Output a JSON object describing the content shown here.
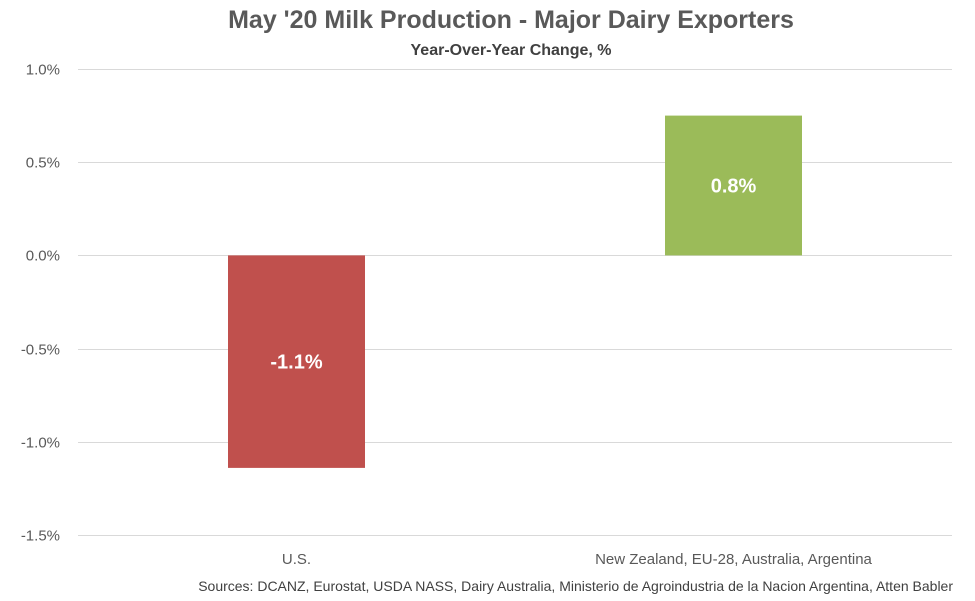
{
  "chart_data": {
    "type": "bar",
    "title": "May '20 Milk Production - Major Dairy Exporters",
    "subtitle": "Year-Over-Year Change, %",
    "categories": [
      "U.S.",
      "New Zealand, EU-28, Australia, Argentina"
    ],
    "values": [
      -1.14,
      0.75
    ],
    "data_labels": [
      "-1.1%",
      "0.8%"
    ],
    "bar_colors": [
      "#c0504d",
      "#9bbb59"
    ],
    "ylim": [
      -1.5,
      1.0
    ],
    "yticks": [
      1.0,
      0.5,
      0.0,
      -0.5,
      -1.0,
      -1.5
    ],
    "ytick_labels": [
      "1.0%",
      "0.5%",
      "0.0%",
      "-0.5%",
      "-1.0%",
      "-1.5%"
    ],
    "grid": true,
    "legend": "none",
    "xlabel": "",
    "ylabel": "",
    "source": "Sources: DCANZ, Eurostat, USDA NASS, Dairy Australia, Ministerio de Agroindustria de la Nacion Argentina, Atten Babler"
  }
}
